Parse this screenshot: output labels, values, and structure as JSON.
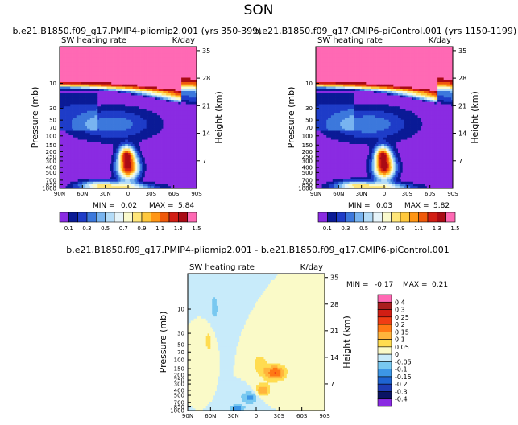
{
  "figure": {
    "title": "SON"
  },
  "chart_data": [
    {
      "type": "heatmap",
      "title": "b.e21.B1850.f09_g17.PMIP4-pliomip2.001 (yrs 350-399)",
      "subtitle_left": "SW heating rate",
      "units": "K/day",
      "xlabel": "",
      "ylabel": "Pressure (mb)",
      "ylabel_right": "Height (km)",
      "x_ticks": [
        "90N",
        "60N",
        "30N",
        "0",
        "30S",
        "60S",
        "90S"
      ],
      "y_ticks": [
        "10",
        "30",
        "50",
        "70",
        "100",
        "150",
        "200",
        "250",
        "300",
        "400",
        "500",
        "700",
        "850",
        "1000"
      ],
      "y_ticks_right": [
        "35",
        "28",
        "21",
        "14",
        "7"
      ],
      "stats": {
        "min_label": "MIN =",
        "min": "0.02",
        "max_label": "MAX =",
        "max": "5.84"
      },
      "colorbar": {
        "labels": [
          "0.1",
          "0.3",
          "0.5",
          "0.7",
          "0.9",
          "1.1",
          "1.3",
          "1.5"
        ],
        "colors": [
          "#8a2be2",
          "#0a1a96",
          "#1e3cc8",
          "#3c78dc",
          "#78b4f0",
          "#b4dcf8",
          "#e6f4fa",
          "#fafacd",
          "#ffe678",
          "#ffc83c",
          "#ff9614",
          "#f05a0a",
          "#d21e14",
          "#aa0a14",
          "#ff69b4"
        ]
      }
    },
    {
      "type": "heatmap",
      "title": "b.e21.B1850.f09_g17.CMIP6-piControl.001 (yrs 1150-1199)",
      "subtitle_left": "SW heating rate",
      "units": "K/day",
      "xlabel": "",
      "ylabel": "Pressure (mb)",
      "ylabel_right": "Height (km)",
      "x_ticks": [
        "90N",
        "60N",
        "30N",
        "0",
        "30S",
        "60S",
        "90S"
      ],
      "y_ticks": [
        "10",
        "30",
        "50",
        "70",
        "100",
        "150",
        "200",
        "250",
        "300",
        "400",
        "500",
        "700",
        "850",
        "1000"
      ],
      "y_ticks_right": [
        "35",
        "28",
        "21",
        "14",
        "7"
      ],
      "stats": {
        "min_label": "MIN =",
        "min": "0.03",
        "max_label": "MAX =",
        "max": "5.82"
      },
      "colorbar": {
        "labels": [
          "0.1",
          "0.3",
          "0.5",
          "0.7",
          "0.9",
          "1.1",
          "1.3",
          "1.5"
        ],
        "colors": [
          "#8a2be2",
          "#0a1a96",
          "#1e3cc8",
          "#3c78dc",
          "#78b4f0",
          "#b4dcf8",
          "#e6f4fa",
          "#fafacd",
          "#ffe678",
          "#ffc83c",
          "#ff9614",
          "#f05a0a",
          "#d21e14",
          "#aa0a14",
          "#ff69b4"
        ]
      }
    },
    {
      "type": "heatmap",
      "title": "b.e21.B1850.f09_g17.PMIP4-pliomip2.001 - b.e21.B1850.f09_g17.CMIP6-piControl.001",
      "subtitle_left": "SW heating rate",
      "units": "K/day",
      "xlabel": "",
      "ylabel": "Pressure (mb)",
      "ylabel_right": "Height (km)",
      "x_ticks": [
        "90N",
        "60N",
        "30N",
        "0",
        "30S",
        "60S",
        "90S"
      ],
      "y_ticks": [
        "10",
        "30",
        "50",
        "70",
        "100",
        "150",
        "200",
        "250",
        "300",
        "400",
        "500",
        "700",
        "850",
        "1000"
      ],
      "y_ticks_right": [
        "35",
        "28",
        "21",
        "14",
        "7"
      ],
      "stats": {
        "min_label": "MIN =",
        "min": "-0.17",
        "max_label": "MAX =",
        "max": "0.21"
      },
      "colorbar": {
        "labels": [
          "0.4",
          "0.3",
          "0.25",
          "0.2",
          "0.15",
          "0.1",
          "0.05",
          "0",
          "-0.05",
          "-0.1",
          "-0.15",
          "-0.2",
          "-0.3",
          "-0.4"
        ],
        "colors": [
          "#ff69b4",
          "#aa1e1e",
          "#d21e14",
          "#f03c14",
          "#ff7814",
          "#ffb43c",
          "#ffdc50",
          "#fafac8",
          "#c8ebfa",
          "#78c8f0",
          "#3c96e6",
          "#1e64d2",
          "#1e3cb4",
          "#0a1464",
          "#8a2be2"
        ]
      }
    }
  ]
}
